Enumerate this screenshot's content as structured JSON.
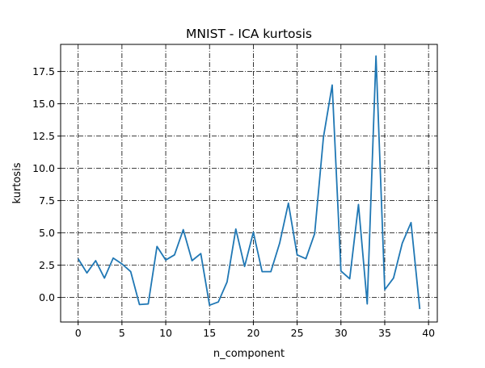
{
  "chart_data": {
    "type": "line",
    "title": "MNIST - ICA kurtosis",
    "xlabel": "n_component",
    "ylabel": "kurtosis",
    "xlim": [
      -2,
      41
    ],
    "ylim": [
      -1.9,
      19.6
    ],
    "xticks": [
      0,
      5,
      10,
      15,
      20,
      25,
      30,
      35,
      40
    ],
    "yticks": [
      0.0,
      2.5,
      5.0,
      7.5,
      10.0,
      12.5,
      15.0,
      17.5
    ],
    "xtick_labels": [
      "0",
      "5",
      "10",
      "15",
      "20",
      "25",
      "30",
      "35",
      "40"
    ],
    "ytick_labels": [
      "0.0",
      "2.5",
      "5.0",
      "7.5",
      "10.0",
      "12.5",
      "15.0",
      "17.5"
    ],
    "grid": true,
    "grid_style": "dash-dot",
    "series": [
      {
        "color": "#1f77b4",
        "x": [
          0,
          1,
          2,
          3,
          4,
          5,
          6,
          7,
          8,
          9,
          10,
          11,
          12,
          13,
          14,
          15,
          16,
          17,
          18,
          19,
          20,
          21,
          22,
          23,
          24,
          25,
          26,
          27,
          28,
          29,
          30,
          31,
          32,
          33,
          34,
          35,
          36,
          37,
          38,
          39
        ],
        "y": [
          3.0,
          1.9,
          2.85,
          1.5,
          3.05,
          2.6,
          2.0,
          -0.55,
          -0.5,
          3.95,
          2.9,
          3.3,
          5.25,
          2.85,
          3.4,
          -0.6,
          -0.35,
          1.2,
          5.3,
          2.4,
          5.05,
          2.0,
          2.0,
          4.2,
          7.3,
          3.3,
          3.0,
          4.95,
          12.4,
          16.45,
          2.05,
          1.45,
          7.2,
          -0.5,
          18.7,
          0.6,
          1.5,
          4.2,
          5.8,
          -0.9
        ]
      }
    ]
  }
}
